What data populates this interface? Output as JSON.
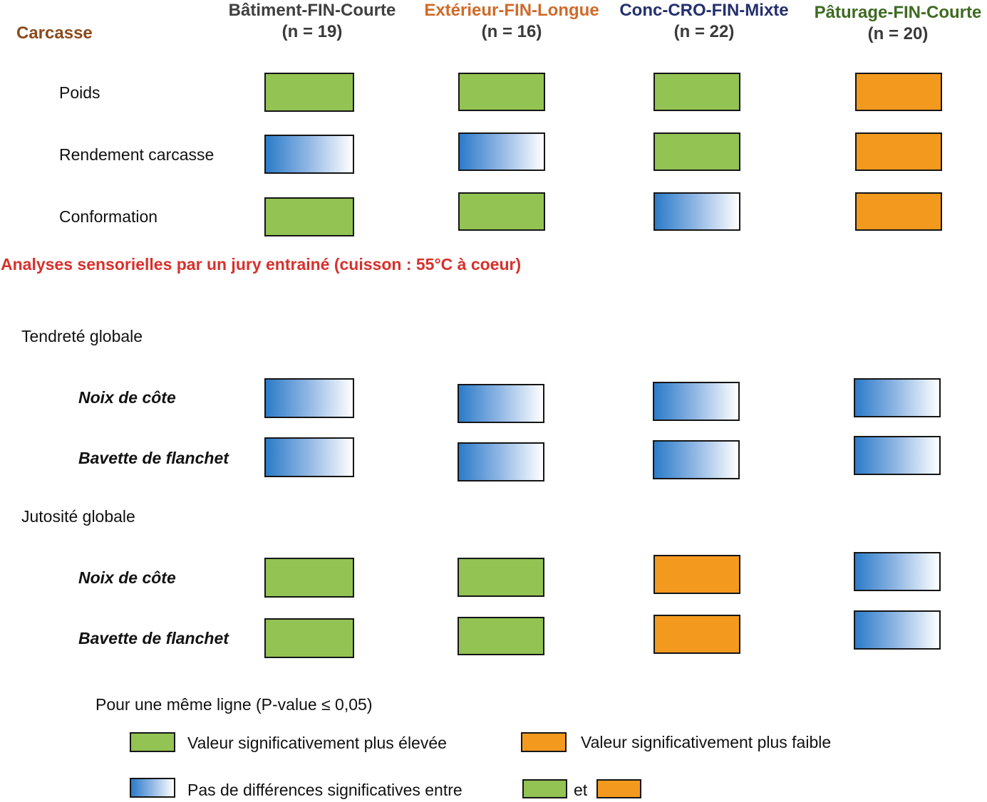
{
  "columns": [
    {
      "name": "Bâtiment-FIN-Courte",
      "n": "(n = 19)",
      "color": "#404040"
    },
    {
      "name": "Extérieur-FIN-Longue",
      "n": "(n = 16)",
      "color": "#d06a2a"
    },
    {
      "name": "Conc-CRO-FIN-Mixte",
      "n": "(n = 22)",
      "color": "#23306e"
    },
    {
      "name": "Pâturage-FIN-Courte",
      "n": "(n = 20)",
      "color": "#3e6a22"
    }
  ],
  "carcasse": {
    "title": "Carcasse",
    "title_color": "#8a4a1c",
    "rows": [
      {
        "label": "Poids",
        "cells": [
          "high",
          "high",
          "high",
          "low"
        ]
      },
      {
        "label": "Rendement carcasse",
        "cells": [
          "ns",
          "ns",
          "high",
          "low"
        ]
      },
      {
        "label": "Conformation",
        "cells": [
          "high",
          "high",
          "ns",
          "low"
        ]
      }
    ]
  },
  "sensory": {
    "title": "Analyses sensorielles par un jury entrainé (cuisson : 55°C à coeur)",
    "title_color": "#d8302b",
    "groups": [
      {
        "label": "Tendreté globale",
        "rows": [
          {
            "label": "Noix de côte",
            "cells": [
              "ns",
              "ns",
              "ns",
              "ns"
            ]
          },
          {
            "label": "Bavette de flanchet",
            "cells": [
              "ns",
              "ns",
              "ns",
              "ns"
            ]
          }
        ]
      },
      {
        "label": "Jutosité globale",
        "rows": [
          {
            "label": "Noix de côte",
            "cells": [
              "high",
              "high",
              "low",
              "ns"
            ]
          },
          {
            "label": "Bavette de flanchet",
            "cells": [
              "high",
              "high",
              "low",
              "ns"
            ]
          }
        ]
      }
    ]
  },
  "legend": {
    "title": "Pour une même ligne (P-value ≤ 0,05)",
    "high": "Valeur significativement plus élevée",
    "low": "Valeur significativement plus faible",
    "ns": "Pas de différences significatives entre",
    "and": "et"
  },
  "colors": {
    "high": "#92c353",
    "low": "#f39a1e",
    "ns_start": "#2b7bc9",
    "ns_end": "#ffffff"
  }
}
